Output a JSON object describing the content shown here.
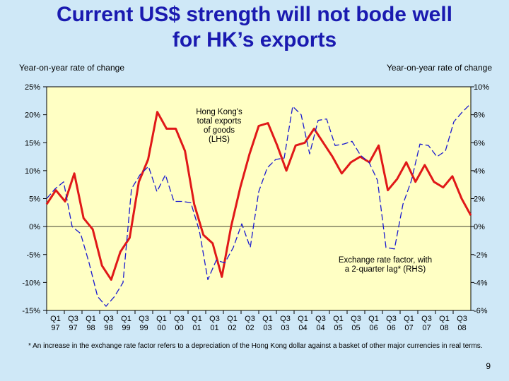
{
  "header": {
    "title_line1": "Current US$ strength will not bode well",
    "title_line2": "for HK’s exports"
  },
  "chart_data": {
    "type": "line",
    "lhs_axis_title": "Year-on-year rate of change",
    "rhs_axis_title": "Year-on-year rate of change",
    "lhs_ticks": [
      "25%",
      "20%",
      "15%",
      "10%",
      "5%",
      "0%",
      "-5%",
      "-10%",
      "-15%"
    ],
    "rhs_ticks": [
      "10%",
      "8%",
      "6%",
      "4%",
      "2%",
      "0%",
      "-2%",
      "-4%",
      "-6%"
    ],
    "lhs_range": [
      -15,
      25
    ],
    "rhs_range": [
      -6,
      10
    ],
    "x_tick_labels": [
      {
        "q": "Q1",
        "y": "97"
      },
      {
        "q": "Q3",
        "y": "97"
      },
      {
        "q": "Q1",
        "y": "98"
      },
      {
        "q": "Q3",
        "y": "98"
      },
      {
        "q": "Q1",
        "y": "99"
      },
      {
        "q": "Q3",
        "y": "99"
      },
      {
        "q": "Q1",
        "y": "00"
      },
      {
        "q": "Q3",
        "y": "00"
      },
      {
        "q": "Q1",
        "y": "01"
      },
      {
        "q": "Q3",
        "y": "01"
      },
      {
        "q": "Q1",
        "y": "02"
      },
      {
        "q": "Q3",
        "y": "02"
      },
      {
        "q": "Q1",
        "y": "03"
      },
      {
        "q": "Q3",
        "y": "03"
      },
      {
        "q": "Q1",
        "y": "04"
      },
      {
        "q": "Q3",
        "y": "04"
      },
      {
        "q": "Q1",
        "y": "05"
      },
      {
        "q": "Q3",
        "y": "05"
      },
      {
        "q": "Q1",
        "y": "06"
      },
      {
        "q": "Q3",
        "y": "06"
      },
      {
        "q": "Q1",
        "y": "07"
      },
      {
        "q": "Q3",
        "y": "07"
      },
      {
        "q": "Q1",
        "y": "08"
      },
      {
        "q": "Q3",
        "y": "08"
      }
    ],
    "series": [
      {
        "name": "Hong Kong's total exports of goods (LHS)",
        "axis": "lhs",
        "color": "#e01818",
        "values": [
          4,
          6.5,
          4.5,
          9.5,
          1.5,
          -0.5,
          -7,
          -9.5,
          -4.5,
          -2,
          8,
          12,
          20.5,
          17.5,
          17.5,
          13.5,
          4,
          -1.5,
          -3,
          -9,
          0,
          7,
          13,
          18,
          18.5,
          14.5,
          10,
          14.5,
          15,
          17.5,
          15,
          12.5,
          9.5,
          11.5,
          12.5,
          11.5,
          14.5,
          6.5,
          8.5,
          11.5,
          8,
          11,
          8,
          7,
          9,
          5,
          2
        ]
      },
      {
        "name": "Exchange rate factor, with a 2-quarter lag* (RHS)",
        "axis": "rhs",
        "color": "#1a1ad0",
        "values": [
          2.0,
          2.7,
          3.2,
          0,
          -0.5,
          -2.6,
          -5.0,
          -5.7,
          -5.0,
          -4.0,
          2.7,
          3.7,
          4.3,
          2.5,
          3.7,
          1.8,
          1.8,
          1.7,
          -0.3,
          -3.8,
          -2.4,
          -2.6,
          -1.5,
          0.2,
          -1.5,
          2.5,
          4.2,
          4.8,
          4.9,
          8.6,
          8.0,
          5.2,
          7.6,
          7.7,
          5.8,
          5.9,
          6.1,
          5.1,
          4.6,
          3.3,
          -1.5,
          -1.6,
          1.6,
          3.3,
          5.9,
          5.8,
          5.0,
          5.4,
          7.5,
          8.2,
          8.8
        ]
      }
    ],
    "annotations": [
      {
        "lines": [
          "Hong Kong's",
          "total exports",
          "of goods",
          "(LHS)"
        ]
      },
      {
        "lines": [
          "Exchange rate factor, with",
          "a 2-quarter lag* (RHS)"
        ]
      }
    ]
  },
  "footnote": "*  An increase in the exchange rate factor refers to a depreciation of the Hong Kong dollar against a basket of other major currencies in real terms.",
  "page_number": "9"
}
